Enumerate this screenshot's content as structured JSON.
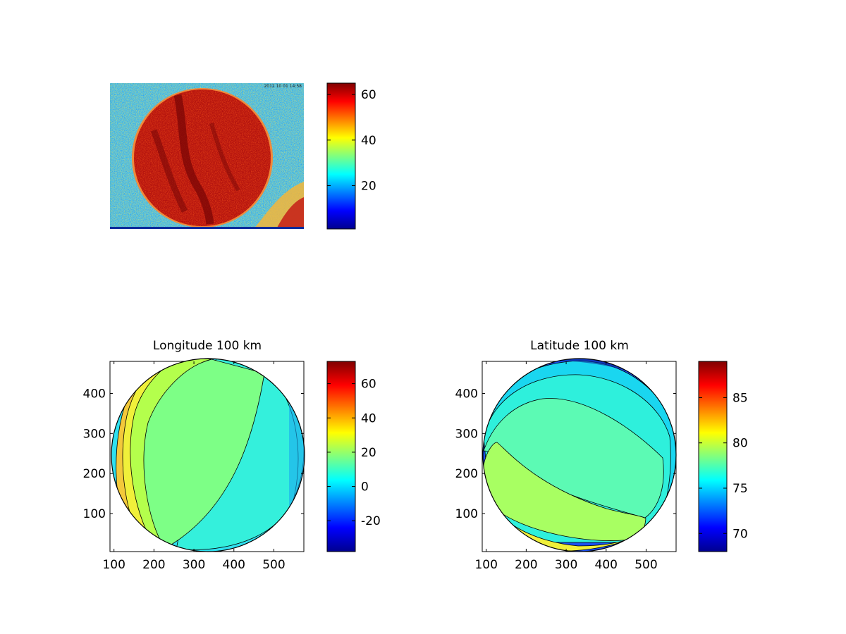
{
  "chart_data": [
    {
      "type": "heatmap",
      "title": "",
      "xlabel": "",
      "ylabel": "",
      "axes_visible": false,
      "description_note": "image of a round object on noisy background; color values shown by colorbar",
      "colorbar": {
        "min": 1,
        "max": 65,
        "ticks": [
          20,
          40,
          60
        ],
        "colormap": "jet"
      },
      "legend_text": "",
      "image_stamp": "2012 10 01 14:58"
    },
    {
      "type": "heatmap",
      "title": "Longitude 100 km",
      "xlabel": "",
      "ylabel": "",
      "xlim": [
        90,
        575
      ],
      "ylim": [
        5,
        480
      ],
      "xticks": [
        100,
        200,
        300,
        400,
        500
      ],
      "yticks": [
        100,
        200,
        300,
        400
      ],
      "colorbar": {
        "min": -38,
        "max": 73,
        "ticks": [
          -20,
          0,
          20,
          40,
          60
        ],
        "colormap": "jet"
      },
      "disk": {
        "center_x": 330,
        "center_y": 240,
        "radius": 240
      },
      "contour_levels": [
        0,
        5,
        10,
        15,
        20,
        25,
        30,
        35
      ]
    },
    {
      "type": "heatmap",
      "title": "Latitude 100 km",
      "xlabel": "",
      "ylabel": "",
      "xlim": [
        90,
        575
      ],
      "ylim": [
        5,
        480
      ],
      "xticks": [
        100,
        200,
        300,
        400,
        500
      ],
      "yticks": [
        100,
        200,
        300,
        400
      ],
      "colorbar": {
        "min": 68,
        "max": 89,
        "ticks": [
          70,
          75,
          80,
          85
        ],
        "colormap": "jet"
      },
      "disk": {
        "center_x": 330,
        "center_y": 240,
        "radius": 240
      },
      "contour_levels": [
        70,
        72,
        74,
        76,
        78,
        80,
        82,
        84
      ]
    }
  ]
}
